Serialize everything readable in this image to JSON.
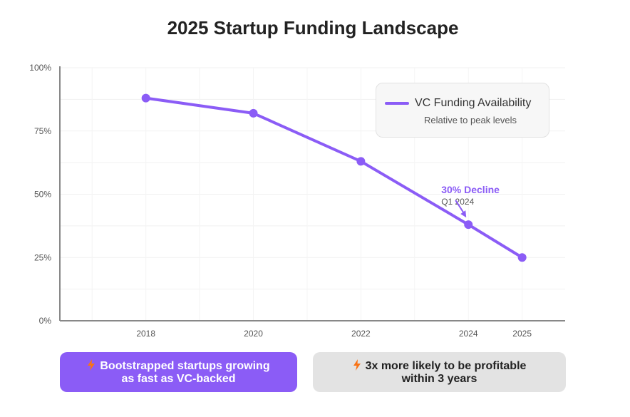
{
  "title": "2025 Startup Funding Landscape",
  "chart_data": {
    "type": "line",
    "title": "2025 Startup Funding Landscape",
    "x": [
      2018,
      2020,
      2022,
      2024,
      2025
    ],
    "x_tick_labels": [
      "2018",
      "2020",
      "2022",
      "2024",
      "2025"
    ],
    "y_tick_labels": [
      "0%",
      "25%",
      "50%",
      "75%",
      "100%"
    ],
    "ylim": [
      0,
      100
    ],
    "xlim": [
      2016.4,
      2025.8
    ],
    "grid": true,
    "series": [
      {
        "name": "VC Funding Availability",
        "values": [
          88,
          82,
          63,
          38,
          25
        ],
        "color": "#8b5cf6"
      }
    ],
    "legend": {
      "position": "top-right",
      "label": "VC Funding Availability",
      "sublabel": "Relative to peak levels"
    },
    "annotation": {
      "title": "30% Decline",
      "subtitle": "Q1 2024",
      "x": 2024,
      "y": 38
    }
  },
  "cards": [
    {
      "text1": "Bootstrapped startups growing",
      "text2": "as fast as VC-backed",
      "icon": "lightning-icon"
    },
    {
      "text1": "3x more likely to be profitable",
      "text2": "within 3 years",
      "icon": "lightning-icon"
    }
  ]
}
